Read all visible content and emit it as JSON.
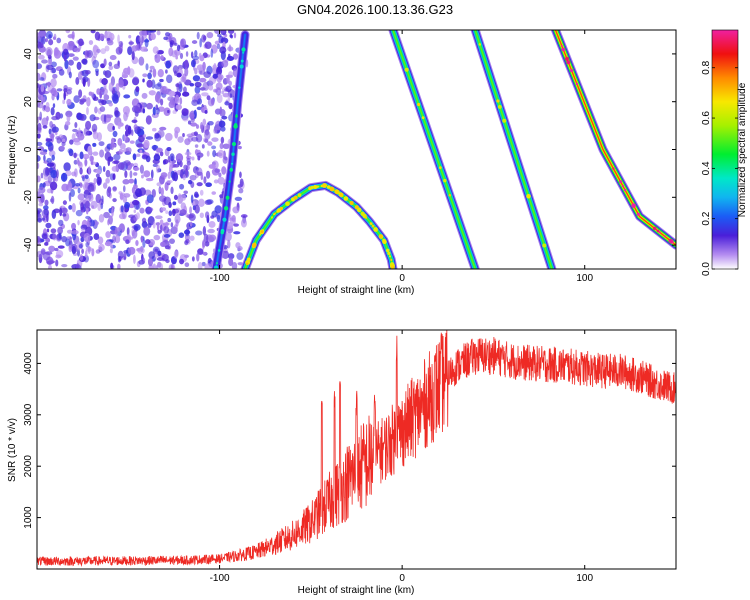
{
  "title": "GN04.2026.100.13.36.G23",
  "colors": {
    "background": "#ffffff",
    "snr_line": "#ee2a24",
    "speckle": "#7a2ee0",
    "axis": "#000000"
  },
  "chart_data": [
    {
      "type": "heatmap",
      "name": "spectrogram",
      "xlabel": "Height of straight line (km)",
      "ylabel": "Frequency (Hz)",
      "xlim": [
        -200,
        150
      ],
      "ylim": [
        -50,
        50
      ],
      "x_ticks": [
        -100,
        0,
        100
      ],
      "x_tick_labels": [
        "-100",
        "0",
        "100"
      ],
      "y_ticks": [
        -40,
        -20,
        0,
        20,
        40
      ],
      "y_tick_labels": [
        "-40",
        "-20",
        "0",
        "20",
        "40"
      ],
      "colorbar": {
        "label": "Normalized spectral amplitude",
        "range": [
          0,
          0.95
        ],
        "ticks": [
          0.0,
          0.2,
          0.4,
          0.6,
          0.8
        ],
        "tick_labels": [
          "0.0",
          "0.2",
          "0.4",
          "0.6",
          "0.8"
        ],
        "colormap": "rainbow"
      },
      "noise_region": {
        "x_from": -200,
        "x_to": -95,
        "fade_to": -85
      },
      "traces": [
        {
          "name": "steep-trace",
          "points": [
            [
              -102,
              -50
            ],
            [
              -97,
              -28
            ],
            [
              -93,
              -5
            ],
            [
              -90,
              20
            ],
            [
              -86,
              48
            ]
          ],
          "peak": 0.25
        },
        {
          "name": "arc-trace",
          "points": [
            [
              -86,
              -50
            ],
            [
              -80,
              -38
            ],
            [
              -70,
              -27
            ],
            [
              -60,
              -21
            ],
            [
              -50,
              -16
            ],
            [
              -42,
              -15
            ],
            [
              -35,
              -18
            ],
            [
              -25,
              -24
            ],
            [
              -18,
              -30
            ],
            [
              -10,
              -38
            ],
            [
              -6,
              -46
            ],
            [
              -5,
              -50
            ]
          ],
          "peak": 0.55
        },
        {
          "name": "streak-1",
          "points": [
            [
              -5,
              50
            ],
            [
              40,
              -50
            ]
          ],
          "peak": 0.55
        },
        {
          "name": "streak-2",
          "points": [
            [
              40,
              50
            ],
            [
              82,
              -50
            ]
          ],
          "peak": 0.55
        },
        {
          "name": "streak-3",
          "points": [
            [
              84,
              50
            ],
            [
              110,
              0
            ],
            [
              130,
              -28
            ],
            [
              150,
              -40
            ]
          ],
          "peak": 0.85
        }
      ]
    },
    {
      "type": "line",
      "name": "snr",
      "xlabel": "Height of straight line (km)",
      "ylabel": "SNR (10 * v/v)",
      "xlim": [
        -200,
        150
      ],
      "ylim": [
        0,
        4650
      ],
      "x_ticks": [
        -100,
        0,
        100
      ],
      "x_tick_labels": [
        "-100",
        "0",
        "100"
      ],
      "y_ticks": [
        1000,
        2000,
        3000,
        4000
      ],
      "y_tick_labels": [
        "1000",
        "2000",
        "3000",
        "4000"
      ],
      "series": [
        {
          "name": "SNR",
          "x": [
            -200,
            -150,
            -120,
            -100,
            -90,
            -80,
            -70,
            -60,
            -50,
            -40,
            -30,
            -20,
            -10,
            0,
            10,
            20,
            30,
            40,
            50,
            60,
            70,
            80,
            90,
            100,
            110,
            120,
            130,
            140,
            150
          ],
          "values": [
            150,
            160,
            170,
            200,
            260,
            330,
            480,
            650,
            900,
            1300,
            1700,
            2050,
            2350,
            2700,
            3100,
            3550,
            3950,
            4150,
            4150,
            4050,
            4000,
            3980,
            3950,
            3900,
            3850,
            3850,
            3750,
            3600,
            3500
          ],
          "spikes": [
            {
              "x": -44,
              "value": 3300
            },
            {
              "x": -37,
              "value": 3600
            },
            {
              "x": -34,
              "value": 3700
            },
            {
              "x": -25,
              "value": 3500
            },
            {
              "x": -15,
              "value": 3500
            },
            {
              "x": -3,
              "value": 4650
            }
          ]
        }
      ]
    }
  ]
}
